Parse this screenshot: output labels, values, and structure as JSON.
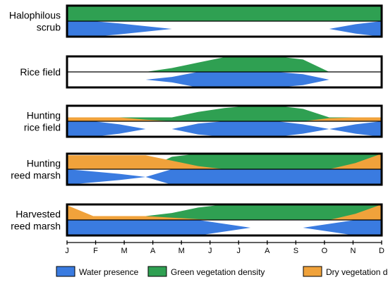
{
  "chart_data": {
    "type": "area",
    "months": [
      "J",
      "F",
      "M",
      "A",
      "M",
      "J",
      "J",
      "A",
      "S",
      "O",
      "N",
      "D"
    ],
    "colors": {
      "water": "#3a7be0",
      "green": "#2fa052",
      "dry": "#f0a23b",
      "outline": "#000000"
    },
    "legend": [
      {
        "key": "water",
        "label": "Water presence"
      },
      {
        "key": "green",
        "label": "Green vegetation density"
      },
      {
        "key": "dry",
        "label": "Dry vegetation density"
      }
    ],
    "rows": [
      {
        "label_lines": [
          "Halophilous",
          "scrub"
        ],
        "green_upper": [
          1,
          1,
          1,
          1,
          1,
          1,
          1,
          1,
          1,
          1,
          1,
          1,
          1
        ],
        "dry_upper": [
          0,
          0,
          0,
          0,
          0,
          0,
          0,
          0,
          0,
          0,
          0,
          0,
          0
        ],
        "water": [
          1,
          1,
          0.7,
          0.35,
          0,
          0,
          0,
          0,
          0,
          0,
          0,
          0.6,
          1
        ]
      },
      {
        "label_lines": [
          "Rice field"
        ],
        "green_upper": [
          0,
          0,
          0,
          0,
          0.25,
          0.6,
          0.95,
          1,
          1,
          0.8,
          0,
          0,
          0
        ],
        "dry_upper": [
          0,
          0,
          0,
          0,
          0,
          0,
          0,
          0,
          0,
          0,
          0,
          0,
          0
        ],
        "water": [
          0,
          0,
          0,
          0,
          0.35,
          1,
          1,
          1,
          1,
          0.7,
          0,
          0,
          0
        ]
      },
      {
        "label_lines": [
          "Hunting",
          "rice field"
        ],
        "green_upper": [
          0.25,
          0.25,
          0.25,
          0.25,
          0.25,
          0.6,
          0.85,
          1,
          1,
          0.8,
          0.25,
          0.25,
          0.25
        ],
        "dry_upper": [
          0.25,
          0.25,
          0.25,
          0.1,
          0,
          0,
          0,
          0,
          0,
          0,
          0.2,
          0.25,
          0.25
        ],
        "water": [
          1,
          1,
          0.6,
          0,
          0,
          0.7,
          1,
          1,
          1,
          0.6,
          0,
          0.6,
          1
        ]
      },
      {
        "label_lines": [
          "Hunting",
          "reed marsh"
        ],
        "green_upper": [
          0,
          0,
          0,
          0,
          0.8,
          1,
          1,
          1,
          1,
          1,
          1,
          1,
          1
        ],
        "dry_upper": [
          0.9,
          0.9,
          0.9,
          0.9,
          0.55,
          0.2,
          0,
          0,
          0,
          0,
          0,
          0.4,
          1
        ],
        "water": [
          1,
          0.7,
          0.4,
          0,
          1,
          1,
          1,
          1,
          1,
          1,
          1,
          1,
          1
        ]
      },
      {
        "label_lines": [
          "Harvested",
          "reed marsh"
        ],
        "green_upper": [
          0,
          0,
          0.25,
          0.25,
          0.45,
          0.8,
          1,
          1,
          1,
          1,
          1,
          1,
          1
        ],
        "dry_upper": [
          0.95,
          0.25,
          0.25,
          0.25,
          0.15,
          0.05,
          0,
          0,
          0,
          0,
          0,
          0.4,
          1
        ],
        "water": [
          1,
          1,
          1,
          1,
          1,
          1,
          0.5,
          0,
          0,
          0,
          0.5,
          1,
          1
        ]
      }
    ]
  }
}
